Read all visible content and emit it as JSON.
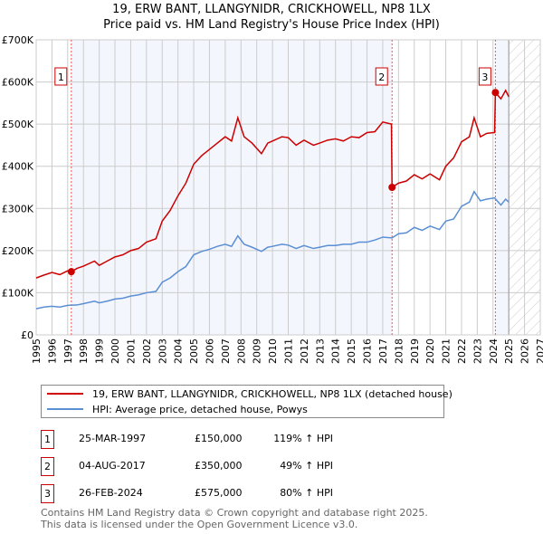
{
  "chart_data": {
    "type": "line",
    "title": "19, ERW BANT, LLANGYNIDR, CRICKHOWELL, NP8 1LX",
    "subtitle": "Price paid vs. HM Land Registry's House Price Index (HPI)",
    "xlim": [
      1995,
      2027
    ],
    "ylim": [
      0,
      700000
    ],
    "x_ticks": [
      "1995",
      "1996",
      "1997",
      "1998",
      "1999",
      "2000",
      "2001",
      "2002",
      "2003",
      "2004",
      "2005",
      "2006",
      "2007",
      "2008",
      "2009",
      "2010",
      "2011",
      "2012",
      "2013",
      "2014",
      "2015",
      "2016",
      "2017",
      "2018",
      "2019",
      "2020",
      "2021",
      "2022",
      "2023",
      "2024",
      "2025",
      "2026",
      "2027"
    ],
    "y_ticks": [
      {
        "v": 0,
        "label": "£0"
      },
      {
        "v": 100000,
        "label": "£100K"
      },
      {
        "v": 200000,
        "label": "£200K"
      },
      {
        "v": 300000,
        "label": "£300K"
      },
      {
        "v": 400000,
        "label": "£400K"
      },
      {
        "v": 500000,
        "label": "£500K"
      },
      {
        "v": 600000,
        "label": "£600K"
      },
      {
        "v": 700000,
        "label": "£700K"
      }
    ],
    "grid": true,
    "forecast_from": 2025.0,
    "series": [
      {
        "name": "19, ERW BANT, LLANGYNIDR, CRICKHOWELL, NP8 1LX (detached house)",
        "color": "#cc0000",
        "x": [
          1995,
          1995.5,
          1996,
          1996.5,
          1997,
          1997.23,
          1997.6,
          1998,
          1998.7,
          1999,
          1999.5,
          2000,
          2000.5,
          2001,
          2001.5,
          2002,
          2002.6,
          2003,
          2003.5,
          2004,
          2004.5,
          2005,
          2005.5,
          2006,
          2006.5,
          2007,
          2007.4,
          2007.8,
          2008.2,
          2008.7,
          2009.3,
          2009.7,
          2010,
          2010.6,
          2011,
          2011.5,
          2012,
          2012.6,
          2013,
          2013.5,
          2014,
          2014.5,
          2015,
          2015.5,
          2016,
          2016.5,
          2017,
          2017.55,
          2017.59,
          2018,
          2018.5,
          2019,
          2019.5,
          2020,
          2020.6,
          2021,
          2021.5,
          2022,
          2022.5,
          2022.8,
          2023.2,
          2023.6,
          2024.1,
          2024.15,
          2024.5,
          2024.8,
          2025.0
        ],
        "y": [
          135000,
          142000,
          148000,
          143000,
          152000,
          150000,
          158000,
          163000,
          175000,
          165000,
          175000,
          185000,
          190000,
          200000,
          205000,
          220000,
          228000,
          270000,
          295000,
          330000,
          360000,
          405000,
          425000,
          440000,
          455000,
          470000,
          460000,
          515000,
          470000,
          455000,
          430000,
          455000,
          460000,
          470000,
          468000,
          450000,
          462000,
          450000,
          455000,
          462000,
          465000,
          460000,
          470000,
          468000,
          480000,
          482000,
          505000,
          500000,
          350000,
          360000,
          365000,
          380000,
          370000,
          382000,
          368000,
          400000,
          420000,
          458000,
          470000,
          515000,
          470000,
          478000,
          480000,
          575000,
          560000,
          580000,
          565000
        ]
      },
      {
        "name": "HPI: Average price, detached house, Powys",
        "color": "#5b8fd4",
        "x": [
          1995,
          1995.5,
          1996,
          1996.5,
          1997,
          1997.6,
          1998,
          1998.7,
          1999,
          1999.5,
          2000,
          2000.5,
          2001,
          2001.5,
          2002,
          2002.6,
          2003,
          2003.5,
          2004,
          2004.5,
          2005,
          2005.5,
          2006,
          2006.5,
          2007,
          2007.4,
          2007.8,
          2008.2,
          2008.7,
          2009.3,
          2009.7,
          2010,
          2010.6,
          2011,
          2011.5,
          2012,
          2012.6,
          2013,
          2013.5,
          2014,
          2014.5,
          2015,
          2015.5,
          2016,
          2016.5,
          2017,
          2017.59,
          2018,
          2018.5,
          2019,
          2019.5,
          2020,
          2020.6,
          2021,
          2021.5,
          2022,
          2022.5,
          2022.8,
          2023.2,
          2023.6,
          2024.1,
          2024.5,
          2024.8,
          2025.0
        ],
        "y": [
          62000,
          66000,
          68000,
          66000,
          70000,
          71000,
          74000,
          80000,
          76000,
          80000,
          85000,
          87000,
          92000,
          95000,
          100000,
          103000,
          125000,
          135000,
          150000,
          162000,
          190000,
          198000,
          203000,
          210000,
          215000,
          210000,
          235000,
          215000,
          208000,
          198000,
          208000,
          210000,
          215000,
          213000,
          205000,
          212000,
          205000,
          208000,
          212000,
          212000,
          215000,
          215000,
          220000,
          220000,
          225000,
          232000,
          230000,
          240000,
          242000,
          255000,
          248000,
          258000,
          250000,
          270000,
          275000,
          305000,
          315000,
          340000,
          318000,
          322000,
          325000,
          308000,
          322000,
          315000
        ]
      }
    ],
    "sales": [
      {
        "n": "1",
        "x": 1997.23,
        "y": 150000,
        "date": "25-MAR-1997",
        "price": "£150,000",
        "hpi": "119% ↑ HPI"
      },
      {
        "n": "2",
        "x": 2017.59,
        "y": 350000,
        "date": "04-AUG-2017",
        "price": "£350,000",
        "hpi": "49% ↑ HPI"
      },
      {
        "n": "3",
        "x": 2024.15,
        "y": 575000,
        "date": "26-FEB-2024",
        "price": "£575,000",
        "hpi": "80% ↑ HPI"
      }
    ]
  },
  "legend": {
    "property": "19, ERW BANT, LLANGYNIDR, CRICKHOWELL, NP8 1LX (detached house)",
    "hpi": "HPI: Average price, detached house, Powys"
  },
  "footer": {
    "line1": "Contains HM Land Registry data © Crown copyright and database right 2025.",
    "line2": "This data is licensed under the Open Government Licence v3.0."
  }
}
